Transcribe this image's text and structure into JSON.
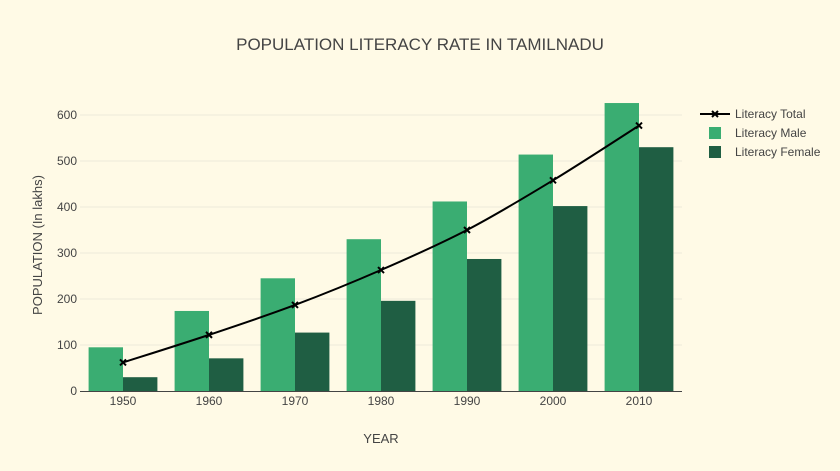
{
  "chart_data": {
    "type": "bar",
    "title": "POPULATION LITERACY RATE IN TAMILNADU",
    "xlabel": "YEAR",
    "ylabel": "POPULATION (In lakhs)",
    "categories": [
      "1950",
      "1960",
      "1970",
      "1980",
      "1990",
      "2000",
      "2010"
    ],
    "ylim": [
      0,
      650
    ],
    "yticks": [
      0,
      100,
      200,
      300,
      400,
      500,
      600
    ],
    "grid": true,
    "legend_position": "top-right",
    "series": [
      {
        "name": "Literacy Total",
        "type": "line",
        "color": "#000000",
        "marker": "x",
        "values": [
          62,
          122,
          187,
          263,
          350,
          458,
          577
        ]
      },
      {
        "name": "Literacy Male",
        "type": "bar",
        "color": "#3aad72",
        "values": [
          95,
          174,
          245,
          330,
          412,
          514,
          626
        ]
      },
      {
        "name": "Literacy Female",
        "type": "bar",
        "color": "#1f5e43",
        "values": [
          30,
          71,
          127,
          196,
          287,
          402,
          530
        ]
      }
    ]
  }
}
